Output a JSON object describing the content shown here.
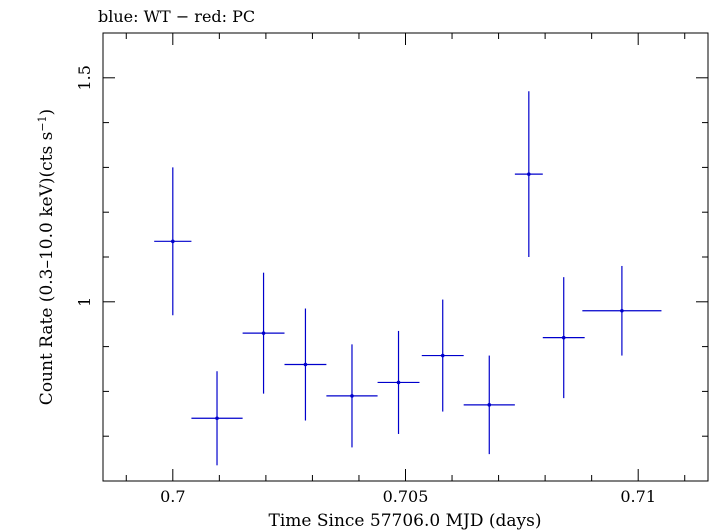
{
  "chart_data": {
    "type": "scatter",
    "title": "blue: WT − red: PC",
    "xlabel": "Time Since 57706.0 MJD (days)",
    "ylabel": "Count Rate (0.3–10.0 keV)(cts s",
    "ylabel_sup": "−1",
    "ylabel_end": ")",
    "xlim": [
      0.6985,
      0.7115
    ],
    "ylim": [
      0.6,
      1.6
    ],
    "xticks_major": [
      0.7,
      0.705,
      0.71
    ],
    "xtick_labels": [
      "0.7",
      "0.705",
      "0.71"
    ],
    "xticks_minor_step": 0.001,
    "yticks_major": [
      1.0,
      1.5
    ],
    "ytick_labels": [
      "1",
      "1.5"
    ],
    "yticks_minor_step": 0.1,
    "grid": false,
    "series": [
      {
        "color": "#0000cc",
        "points": [
          {
            "x": 0.7,
            "xerr": 0.0004,
            "y": 1.135,
            "yerr": 0.165
          },
          {
            "x": 0.70095,
            "xerr": 0.00055,
            "y": 0.74,
            "yerr": 0.105
          },
          {
            "x": 0.70195,
            "xerr": 0.00045,
            "y": 0.93,
            "yerr": 0.135
          },
          {
            "x": 0.70285,
            "xerr": 0.00045,
            "y": 0.86,
            "yerr": 0.125
          },
          {
            "x": 0.70385,
            "xerr": 0.00055,
            "y": 0.79,
            "yerr": 0.115
          },
          {
            "x": 0.70485,
            "xerr": 0.00045,
            "y": 0.82,
            "yerr": 0.115
          },
          {
            "x": 0.7058,
            "xerr": 0.00045,
            "y": 0.88,
            "yerr": 0.125
          },
          {
            "x": 0.7068,
            "xerr": 0.00055,
            "y": 0.77,
            "yerr": 0.11
          },
          {
            "x": 0.70765,
            "xerr": 0.0003,
            "y": 1.285,
            "yerr": 0.185
          },
          {
            "x": 0.7084,
            "xerr": 0.00045,
            "y": 0.92,
            "yerr": 0.135
          },
          {
            "x": 0.70965,
            "xerr": 0.00085,
            "y": 0.98,
            "yerr": 0.1
          }
        ]
      }
    ]
  }
}
